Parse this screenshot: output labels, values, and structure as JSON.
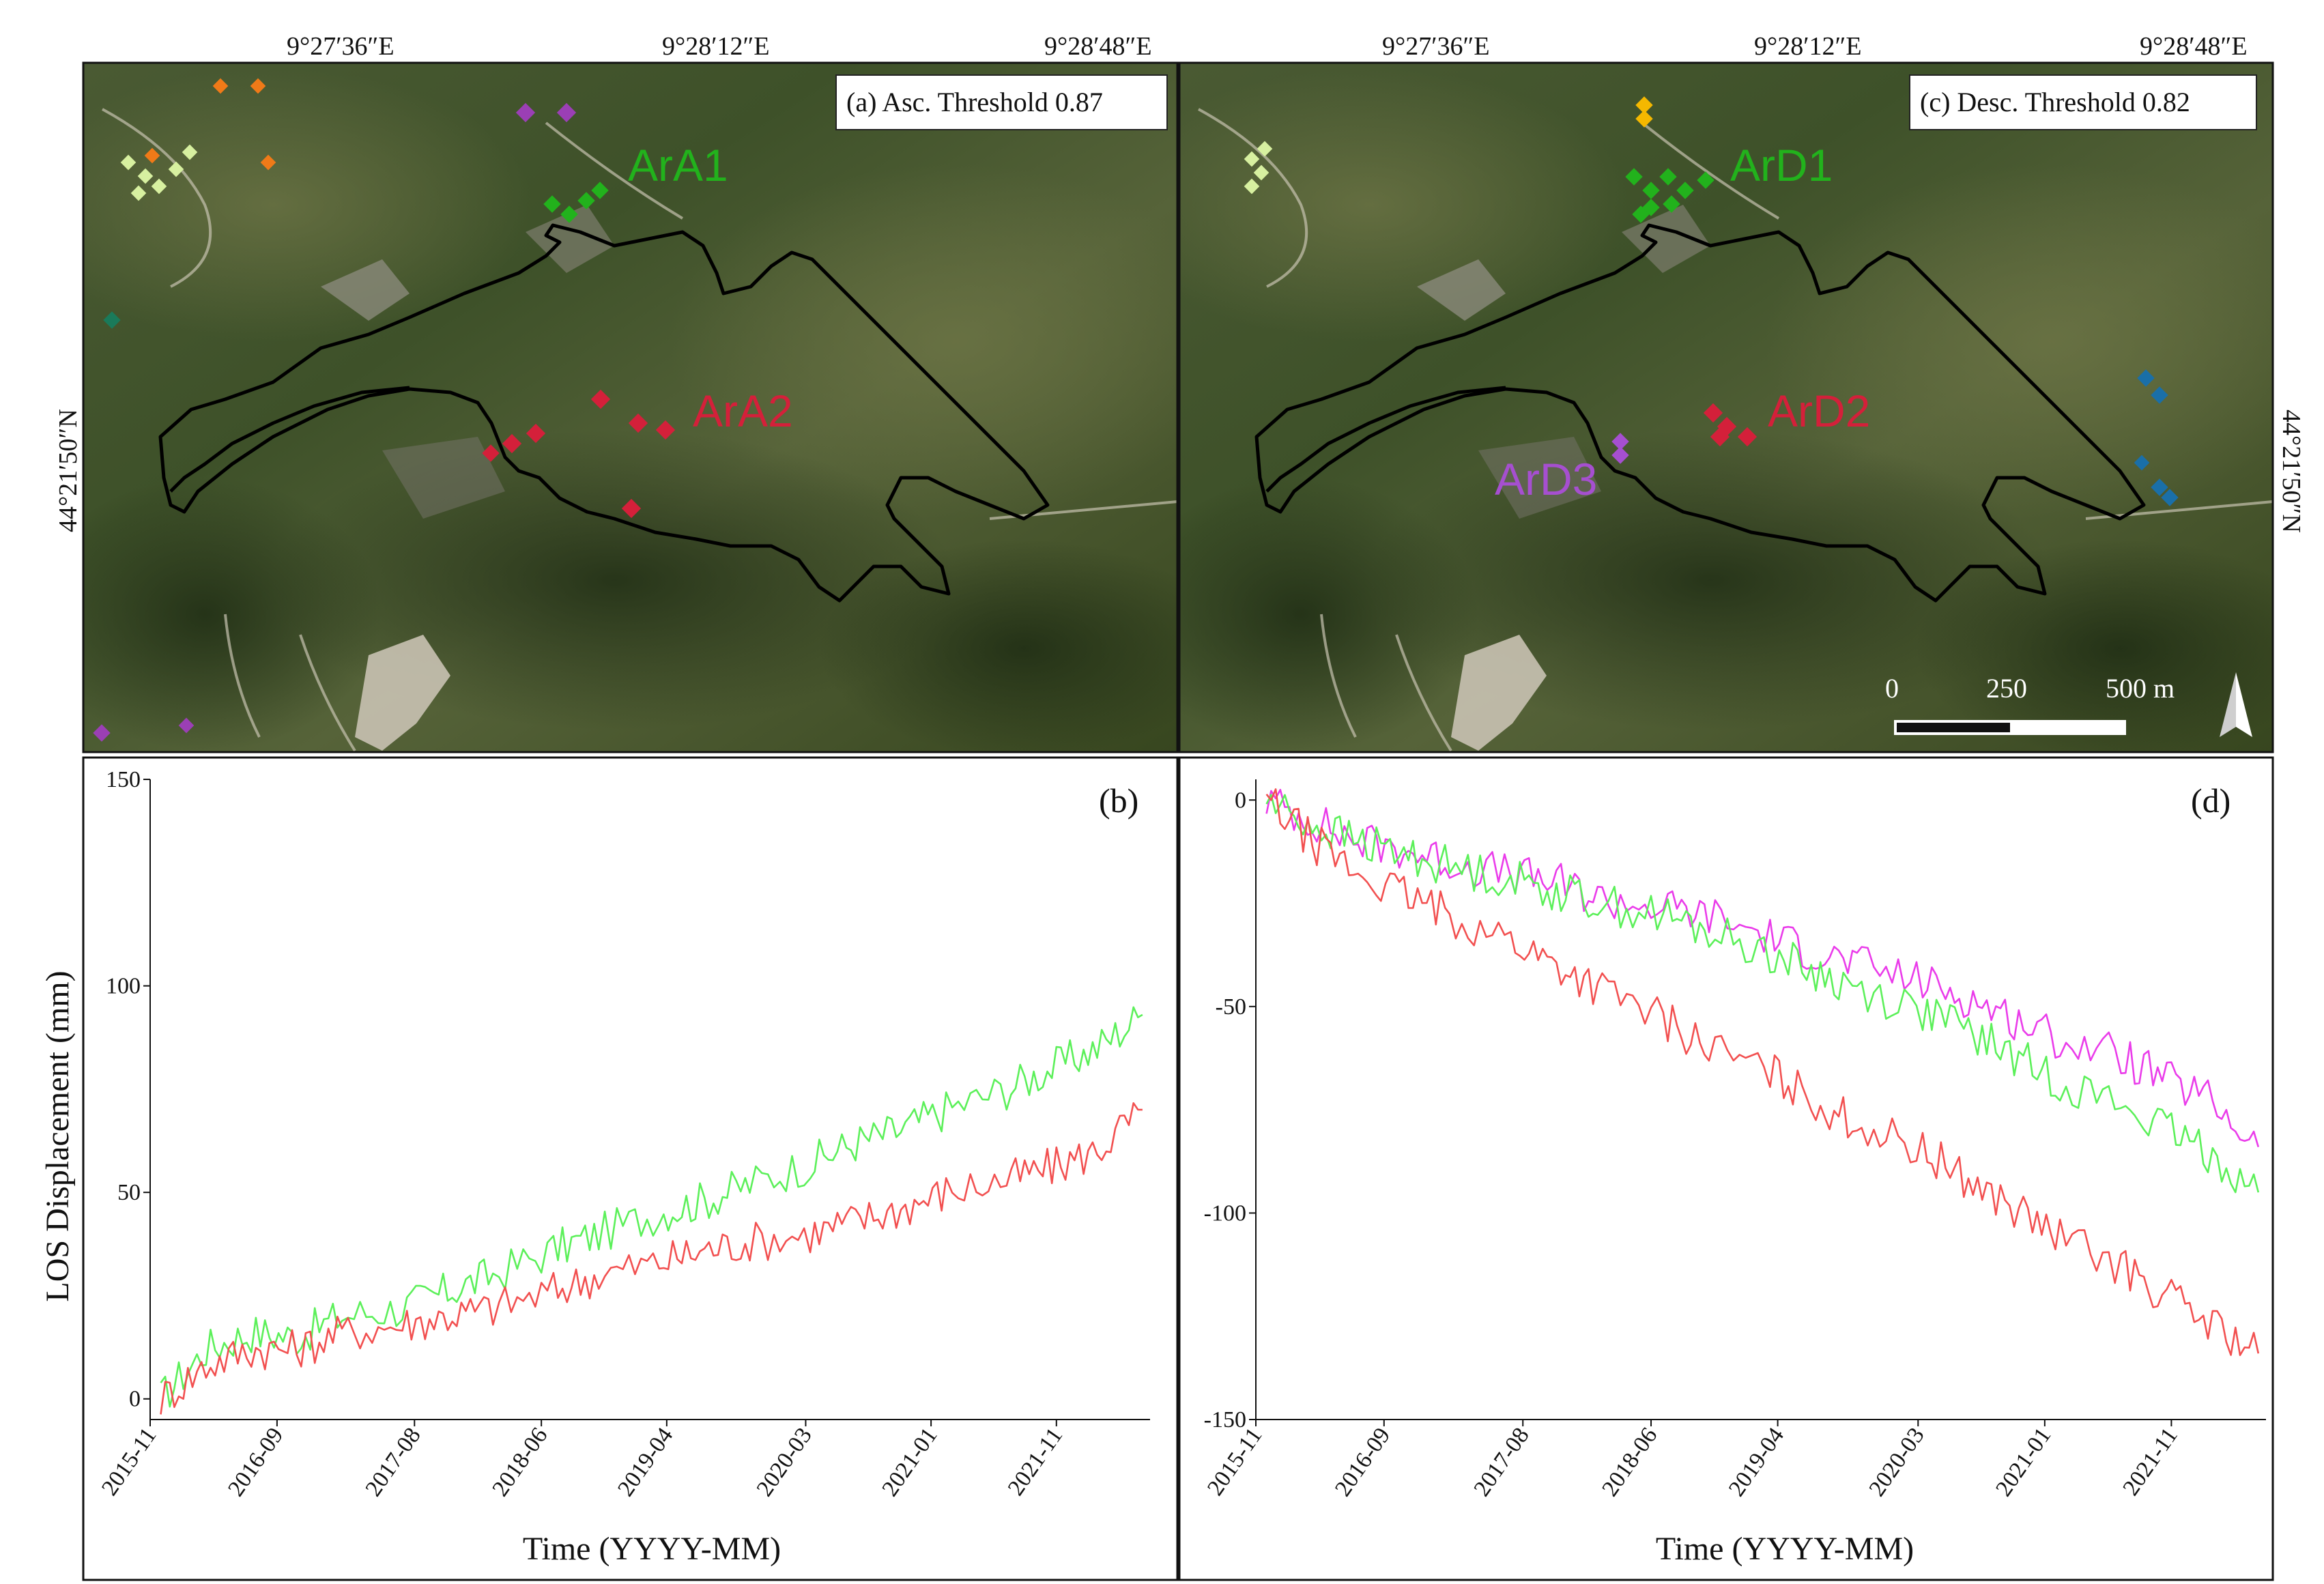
{
  "maps": {
    "top_coords": [
      "9°27′36″E",
      "9°28′12″E",
      "9°28′48″E"
    ],
    "lat_label": "44°21′50″N",
    "a": {
      "label": "(a) Asc. Threshold 0.87",
      "clusters": [
        {
          "name": "ArA1",
          "color": "#22b21c"
        },
        {
          "name": "ArA2",
          "color": "#d4203a"
        }
      ]
    },
    "c": {
      "label": "(c) Desc. Threshold 0.82",
      "clusters": [
        {
          "name": "ArD1",
          "color": "#22b21c"
        },
        {
          "name": "ArD2",
          "color": "#d4203a"
        },
        {
          "name": "ArD3",
          "color": "#a64fd0"
        }
      ],
      "scale": {
        "labels": [
          "0",
          "250",
          "500 m"
        ]
      }
    }
  },
  "chart_data": [
    {
      "type": "line",
      "panel_label": "(b)",
      "xlabel": "Time (YYYY-MM)",
      "ylabel": "LOS Displacement (mm)",
      "xlim": [
        2015.83,
        2022.45
      ],
      "ylim": [
        -5,
        150
      ],
      "yticks": [
        0,
        50,
        100,
        150
      ],
      "xticks": [
        {
          "label": "2015-11",
          "t": 2015.83
        },
        {
          "label": "2016-09",
          "t": 2016.67
        },
        {
          "label": "2017-08",
          "t": 2017.58
        },
        {
          "label": "2018-06",
          "t": 2018.42
        },
        {
          "label": "2019-04",
          "t": 2019.25
        },
        {
          "label": "2020-03",
          "t": 2020.17
        },
        {
          "label": "2021-01",
          "t": 2021.0
        },
        {
          "label": "2021-11",
          "t": 2021.83
        }
      ],
      "series": [
        {
          "name": "ArA1",
          "color": "#5cf05a",
          "x": [
            2015.9,
            2016.2,
            2016.5,
            2016.8,
            2017.1,
            2017.5,
            2017.8,
            2018.1,
            2018.5,
            2018.8,
            2019.2,
            2019.5,
            2019.8,
            2020.2,
            2020.5,
            2020.8,
            2021.1,
            2021.5,
            2021.8,
            2022.1,
            2022.4
          ],
          "y": [
            0,
            12,
            16,
            15,
            20,
            22,
            26,
            30,
            36,
            40,
            45,
            48,
            52,
            57,
            62,
            65,
            70,
            75,
            80,
            85,
            93
          ]
        },
        {
          "name": "ArA2",
          "color": "#f25050",
          "x": [
            2015.9,
            2016.2,
            2016.5,
            2016.8,
            2017.1,
            2017.5,
            2017.8,
            2018.1,
            2018.5,
            2018.8,
            2019.2,
            2019.5,
            2019.8,
            2020.2,
            2020.5,
            2020.8,
            2021.1,
            2021.5,
            2021.8,
            2022.1,
            2022.4
          ],
          "y": [
            0,
            8,
            12,
            12,
            16,
            18,
            20,
            22,
            26,
            30,
            33,
            36,
            38,
            40,
            43,
            46,
            50,
            53,
            56,
            60,
            70
          ]
        }
      ]
    },
    {
      "type": "line",
      "panel_label": "(d)",
      "xlabel": "Time (YYYY-MM)",
      "ylabel": "",
      "xlim": [
        2015.83,
        2022.45
      ],
      "ylim": [
        -150,
        5
      ],
      "yticks": [
        0,
        -50,
        -100,
        -150
      ],
      "xticks": [
        {
          "label": "2015-11",
          "t": 2015.83
        },
        {
          "label": "2016-09",
          "t": 2016.67
        },
        {
          "label": "2017-08",
          "t": 2017.58
        },
        {
          "label": "2018-06",
          "t": 2018.42
        },
        {
          "label": "2019-04",
          "t": 2019.25
        },
        {
          "label": "2020-03",
          "t": 2020.17
        },
        {
          "label": "2021-01",
          "t": 2021.0
        },
        {
          "label": "2021-11",
          "t": 2021.83
        }
      ],
      "series": [
        {
          "name": "ArD3",
          "color": "#ea3cea",
          "x": [
            2015.9,
            2016.2,
            2016.5,
            2016.8,
            2017.1,
            2017.5,
            2017.8,
            2018.1,
            2018.5,
            2018.8,
            2019.2,
            2019.5,
            2019.8,
            2020.2,
            2020.5,
            2020.8,
            2021.1,
            2021.5,
            2021.8,
            2022.1,
            2022.4
          ],
          "y": [
            0,
            -5,
            -10,
            -12,
            -15,
            -18,
            -20,
            -24,
            -26,
            -28,
            -33,
            -37,
            -40,
            -44,
            -48,
            -53,
            -58,
            -62,
            -68,
            -73,
            -84
          ]
        },
        {
          "name": "ArD1",
          "color": "#5cf05a",
          "x": [
            2015.9,
            2016.2,
            2016.5,
            2016.8,
            2017.1,
            2017.5,
            2017.8,
            2018.1,
            2018.5,
            2018.8,
            2019.2,
            2019.5,
            2019.8,
            2020.2,
            2020.5,
            2020.8,
            2021.1,
            2021.5,
            2021.8,
            2022.1,
            2022.4
          ],
          "y": [
            0,
            -6,
            -10,
            -13,
            -16,
            -19,
            -22,
            -25,
            -28,
            -32,
            -37,
            -42,
            -46,
            -51,
            -56,
            -62,
            -68,
            -74,
            -80,
            -86,
            -95
          ]
        },
        {
          "name": "ArD2",
          "color": "#f25050",
          "x": [
            2015.9,
            2016.2,
            2016.5,
            2016.8,
            2017.1,
            2017.5,
            2017.8,
            2018.1,
            2018.5,
            2018.8,
            2019.2,
            2019.5,
            2019.8,
            2020.2,
            2020.5,
            2020.8,
            2021.1,
            2021.5,
            2021.8,
            2022.1,
            2022.4
          ],
          "y": [
            0,
            -10,
            -18,
            -23,
            -28,
            -34,
            -40,
            -46,
            -53,
            -60,
            -66,
            -73,
            -79,
            -85,
            -92,
            -99,
            -106,
            -113,
            -120,
            -127,
            -134
          ]
        }
      ]
    }
  ]
}
